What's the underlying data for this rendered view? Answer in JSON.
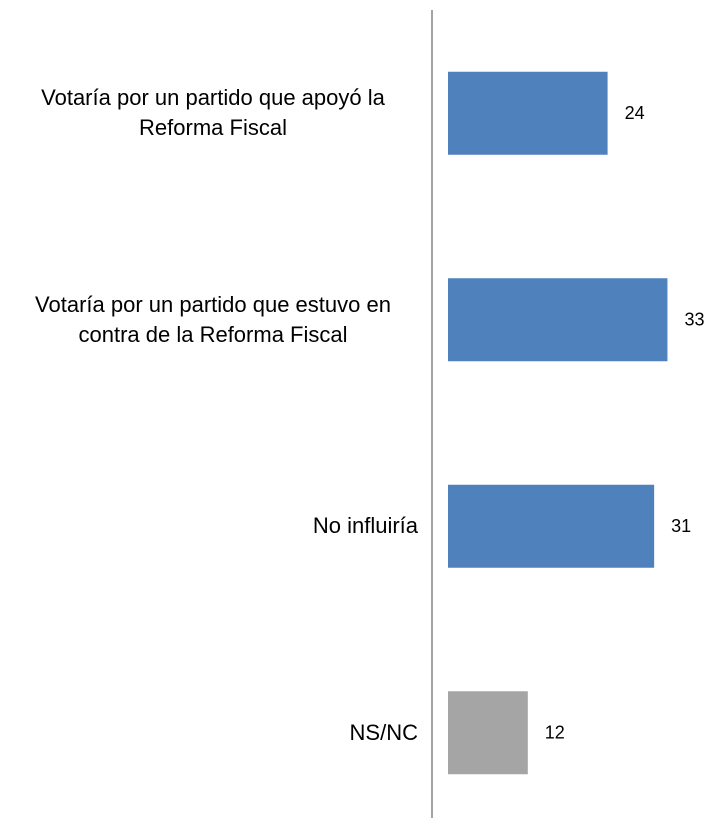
{
  "chart_data": {
    "type": "bar",
    "orientation": "horizontal",
    "categories": [
      "Votaría por un partido que apoyó la Reforma Fiscal",
      "Votaría por un partido que estuvo en contra de la Reforma Fiscal",
      "No influiría",
      "NS/NC"
    ],
    "values": [
      24,
      33,
      31,
      12
    ],
    "colors": [
      "#4f81bd",
      "#4f81bd",
      "#4f81bd",
      "#a5a5a5"
    ]
  }
}
